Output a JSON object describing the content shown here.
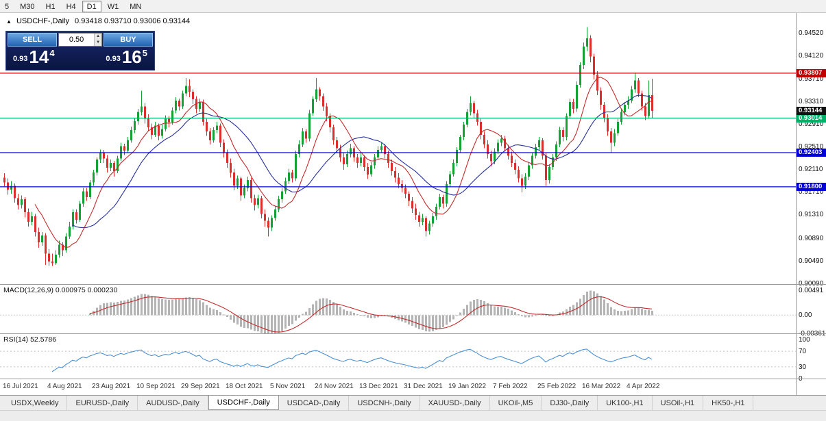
{
  "toolbar": {
    "periods": [
      "5",
      "M30",
      "H1",
      "H4",
      "D1",
      "W1",
      "MN"
    ],
    "active_period": "D1"
  },
  "icons": {
    "one_click_toggle": "▲",
    "spinner_up": "▲",
    "spinner_down": "▼"
  },
  "chart": {
    "symbol_label": "USDCHF-,Daily",
    "ohlc_text": "0.93418 0.93710 0.93006 0.93144"
  },
  "trade_panel": {
    "sell_label": "SELL",
    "buy_label": "BUY",
    "volume": "0.50",
    "sell_price_prefix": "0.93",
    "sell_price_big": "14",
    "sell_price_sup": "4",
    "buy_price_prefix": "0.93",
    "buy_price_big": "16",
    "buy_price_sup": "5"
  },
  "colors": {
    "bull": "#13a233",
    "bear": "#dd2e2e",
    "ma_fast": "#c42b2b",
    "ma_slow": "#27319c",
    "macd_hist": "#b4b4b4",
    "macd_signal": "#c42b2b",
    "rsi_line": "#4a8fd2"
  },
  "tabs": {
    "items": [
      "USDX,Weekly",
      "EURUSD-,Daily",
      "AUDUSD-,Daily",
      "USDCHF-,Daily",
      "USDCAD-,Daily",
      "USDCNH-,Daily",
      "XAUUSD-,Daily",
      "UKOil-,M5",
      "DJ30-,Daily",
      "UK100-,H1",
      "USOil-,H1",
      "HK50-,H1"
    ],
    "active": "USDCHF-,Daily"
  },
  "chart_data": {
    "type": "candlestick",
    "symbol": "USDCHF-",
    "timeframe": "Daily",
    "title": "USDCHF-,Daily",
    "y_axis": {
      "range_top": 0.9487,
      "range_bottom": 0.9007,
      "ticks": [
        "0.94520",
        "0.94120",
        "0.93710",
        "0.93310",
        "0.92910",
        "0.92510",
        "0.92110",
        "0.91710",
        "0.91310",
        "0.90890",
        "0.90490",
        "0.90090"
      ]
    },
    "date_labels": [
      "16 Jul 2021",
      "4 Aug 2021",
      "23 Aug 2021",
      "10 Sep 2021",
      "29 Sep 2021",
      "18 Oct 2021",
      "5 Nov 2021",
      "24 Nov 2021",
      "13 Dec 2021",
      "31 Dec 2021",
      "19 Jan 2022",
      "7 Feb 2022",
      "25 Feb 2022",
      "16 Mar 2022",
      "4 Apr 2022"
    ],
    "date_label_indices": [
      0,
      13,
      26,
      39,
      52,
      65,
      78,
      91,
      104,
      117,
      130,
      143,
      156,
      169,
      182
    ],
    "levels": [
      {
        "value": 0.93807,
        "label": "0.93807",
        "color": "#c00000"
      },
      {
        "value": 0.93014,
        "label": "0.93014",
        "color": "#00b168"
      },
      {
        "value": 0.92403,
        "label": "0.92403",
        "color": "#0000d8"
      },
      {
        "value": 0.918,
        "label": "0.91800",
        "color": "#0000d8"
      }
    ],
    "current_price": {
      "value": 0.93144,
      "label": "0.93144",
      "color": "#111111"
    },
    "last_ohlc": {
      "open": "0.93418",
      "high": "0.93710",
      "low": "0.93006",
      "close": "0.93144"
    },
    "moving_averages": [
      {
        "period": 10,
        "color_key": "ma_fast"
      },
      {
        "period": 21,
        "color_key": "ma_slow"
      }
    ],
    "macd": {
      "label": "MACD(12,26,9) 0.000975 0.000230",
      "fast": 12,
      "slow": 26,
      "signal": 9,
      "ticks": [
        [
          "0.00491",
          0.00491
        ],
        [
          "0.00",
          0
        ],
        [
          "-0.00361",
          -0.00361
        ]
      ],
      "range_top": 0.00599,
      "range_bottom": -0.00375
    },
    "rsi": {
      "label": "RSI(14) 52.5786",
      "period": 14,
      "current": 52.5786,
      "ticks": [
        [
          "100",
          100
        ],
        [
          "70",
          70
        ],
        [
          "30",
          30
        ],
        [
          "0",
          0
        ]
      ],
      "levels": [
        70,
        30
      ]
    },
    "ohlc": [
      [
        0.9196,
        0.9204,
        0.918,
        0.9188
      ],
      [
        0.9188,
        0.9195,
        0.9166,
        0.9175
      ],
      [
        0.9175,
        0.919,
        0.9168,
        0.9182
      ],
      [
        0.9182,
        0.9186,
        0.9152,
        0.916
      ],
      [
        0.916,
        0.9168,
        0.914,
        0.9148
      ],
      [
        0.9148,
        0.9165,
        0.9142,
        0.9158
      ],
      [
        0.9158,
        0.9162,
        0.9126,
        0.9135
      ],
      [
        0.9135,
        0.9142,
        0.911,
        0.9118
      ],
      [
        0.9118,
        0.9136,
        0.9112,
        0.9128
      ],
      [
        0.9128,
        0.9132,
        0.9092,
        0.91
      ],
      [
        0.91,
        0.9108,
        0.9072,
        0.9082
      ],
      [
        0.9082,
        0.91,
        0.9076,
        0.9094
      ],
      [
        0.9094,
        0.9098,
        0.9042,
        0.9062
      ],
      [
        0.9062,
        0.907,
        0.904,
        0.9048
      ],
      [
        0.9048,
        0.9062,
        0.904,
        0.9045
      ],
      [
        0.9045,
        0.9068,
        0.9042,
        0.906
      ],
      [
        0.906,
        0.9085,
        0.9055,
        0.9078
      ],
      [
        0.9078,
        0.9082,
        0.9058,
        0.9068
      ],
      [
        0.9068,
        0.9098,
        0.9064,
        0.9092
      ],
      [
        0.9092,
        0.9118,
        0.9088,
        0.911
      ],
      [
        0.911,
        0.914,
        0.9105,
        0.9135
      ],
      [
        0.9135,
        0.914,
        0.9115,
        0.9122
      ],
      [
        0.9122,
        0.9155,
        0.9118,
        0.915
      ],
      [
        0.915,
        0.9178,
        0.9145,
        0.9172
      ],
      [
        0.9172,
        0.9178,
        0.9155,
        0.9162
      ],
      [
        0.9162,
        0.9192,
        0.9158,
        0.9188
      ],
      [
        0.9188,
        0.921,
        0.9182,
        0.9205
      ],
      [
        0.9205,
        0.9232,
        0.92,
        0.9228
      ],
      [
        0.9228,
        0.9246,
        0.9222,
        0.924
      ],
      [
        0.924,
        0.9245,
        0.9222,
        0.923
      ],
      [
        0.923,
        0.9236,
        0.9205,
        0.9214
      ],
      [
        0.9214,
        0.9228,
        0.9208,
        0.9222
      ],
      [
        0.9222,
        0.9226,
        0.9198,
        0.9208
      ],
      [
        0.9208,
        0.9235,
        0.9204,
        0.923
      ],
      [
        0.923,
        0.9258,
        0.9226,
        0.9252
      ],
      [
        0.9252,
        0.9256,
        0.9236,
        0.9244
      ],
      [
        0.9244,
        0.9268,
        0.924,
        0.9262
      ],
      [
        0.9262,
        0.9286,
        0.9258,
        0.928
      ],
      [
        0.928,
        0.9302,
        0.9275,
        0.9296
      ],
      [
        0.9296,
        0.9318,
        0.929,
        0.9312
      ],
      [
        0.9312,
        0.935,
        0.9306,
        0.9322
      ],
      [
        0.9322,
        0.9328,
        0.9292,
        0.93
      ],
      [
        0.93,
        0.9308,
        0.9278,
        0.9285
      ],
      [
        0.9285,
        0.9292,
        0.9264,
        0.9272
      ],
      [
        0.9272,
        0.9295,
        0.9268,
        0.9288
      ],
      [
        0.9288,
        0.9292,
        0.9262,
        0.927
      ],
      [
        0.927,
        0.929,
        0.9265,
        0.9282
      ],
      [
        0.9282,
        0.9306,
        0.9278,
        0.93
      ],
      [
        0.93,
        0.9305,
        0.9285,
        0.9294
      ],
      [
        0.9294,
        0.932,
        0.929,
        0.9315
      ],
      [
        0.9315,
        0.9338,
        0.931,
        0.9332
      ],
      [
        0.9332,
        0.9336,
        0.9315,
        0.9322
      ],
      [
        0.9322,
        0.935,
        0.9318,
        0.9345
      ],
      [
        0.9345,
        0.9372,
        0.934,
        0.9358
      ],
      [
        0.9358,
        0.937,
        0.9338,
        0.9348
      ],
      [
        0.9348,
        0.9352,
        0.9326,
        0.9335
      ],
      [
        0.9335,
        0.934,
        0.931,
        0.9318
      ],
      [
        0.9318,
        0.9336,
        0.9312,
        0.933
      ],
      [
        0.933,
        0.9334,
        0.9288,
        0.9295
      ],
      [
        0.9295,
        0.93,
        0.927,
        0.9278
      ],
      [
        0.9278,
        0.9284,
        0.9255,
        0.9262
      ],
      [
        0.9262,
        0.9285,
        0.9258,
        0.928
      ],
      [
        0.928,
        0.9295,
        0.9275,
        0.9288
      ],
      [
        0.9288,
        0.9292,
        0.925,
        0.9258
      ],
      [
        0.9258,
        0.9264,
        0.9232,
        0.924
      ],
      [
        0.924,
        0.9246,
        0.9214,
        0.9222
      ],
      [
        0.9222,
        0.923,
        0.9196,
        0.9205
      ],
      [
        0.9205,
        0.9212,
        0.9174,
        0.9182
      ],
      [
        0.9182,
        0.92,
        0.9176,
        0.9195
      ],
      [
        0.9195,
        0.9198,
        0.9156,
        0.9165
      ],
      [
        0.9165,
        0.9184,
        0.916,
        0.9178
      ],
      [
        0.9178,
        0.9198,
        0.9172,
        0.9192
      ],
      [
        0.9192,
        0.9196,
        0.9152,
        0.916
      ],
      [
        0.916,
        0.9166,
        0.9138,
        0.9148
      ],
      [
        0.9148,
        0.9166,
        0.9142,
        0.916
      ],
      [
        0.916,
        0.9164,
        0.9124,
        0.9132
      ],
      [
        0.9132,
        0.914,
        0.911,
        0.912
      ],
      [
        0.912,
        0.9126,
        0.9092,
        0.9108
      ],
      [
        0.9108,
        0.913,
        0.9102,
        0.9125
      ],
      [
        0.9125,
        0.9146,
        0.912,
        0.914
      ],
      [
        0.914,
        0.9164,
        0.9135,
        0.9158
      ],
      [
        0.9158,
        0.9178,
        0.9152,
        0.9172
      ],
      [
        0.9172,
        0.9196,
        0.9168,
        0.919
      ],
      [
        0.919,
        0.9212,
        0.9185,
        0.9205
      ],
      [
        0.9205,
        0.921,
        0.9188,
        0.9195
      ],
      [
        0.9195,
        0.9244,
        0.919,
        0.9238
      ],
      [
        0.9238,
        0.9262,
        0.9232,
        0.9255
      ],
      [
        0.9255,
        0.9284,
        0.925,
        0.9278
      ],
      [
        0.9278,
        0.9282,
        0.9258,
        0.9265
      ],
      [
        0.9265,
        0.9316,
        0.926,
        0.931
      ],
      [
        0.931,
        0.934,
        0.9305,
        0.9335
      ],
      [
        0.9335,
        0.9372,
        0.933,
        0.9352
      ],
      [
        0.9352,
        0.9356,
        0.9332,
        0.934
      ],
      [
        0.934,
        0.9345,
        0.9314,
        0.9322
      ],
      [
        0.9322,
        0.9328,
        0.9296,
        0.9305
      ],
      [
        0.9305,
        0.931,
        0.9276,
        0.9285
      ],
      [
        0.9285,
        0.929,
        0.9254,
        0.9262
      ],
      [
        0.9262,
        0.9268,
        0.924,
        0.9248
      ],
      [
        0.9248,
        0.9254,
        0.9224,
        0.9232
      ],
      [
        0.9232,
        0.924,
        0.921,
        0.922
      ],
      [
        0.922,
        0.9244,
        0.9215,
        0.9238
      ],
      [
        0.9238,
        0.9256,
        0.9232,
        0.9248
      ],
      [
        0.9248,
        0.9252,
        0.9224,
        0.9232
      ],
      [
        0.9232,
        0.9238,
        0.9214,
        0.9222
      ],
      [
        0.9222,
        0.924,
        0.9216,
        0.9232
      ],
      [
        0.9232,
        0.9236,
        0.9208,
        0.9215
      ],
      [
        0.9215,
        0.9222,
        0.9194,
        0.9202
      ],
      [
        0.9202,
        0.9224,
        0.9198,
        0.9218
      ],
      [
        0.9218,
        0.9238,
        0.9212,
        0.9232
      ],
      [
        0.9232,
        0.9252,
        0.9228,
        0.9245
      ],
      [
        0.9245,
        0.9258,
        0.924,
        0.9252
      ],
      [
        0.9252,
        0.9256,
        0.923,
        0.9238
      ],
      [
        0.9238,
        0.9244,
        0.9214,
        0.9222
      ],
      [
        0.9222,
        0.9228,
        0.92,
        0.9208
      ],
      [
        0.9208,
        0.9215,
        0.9188,
        0.9196
      ],
      [
        0.9196,
        0.9204,
        0.9178,
        0.9185
      ],
      [
        0.9185,
        0.9192,
        0.917,
        0.9178
      ],
      [
        0.9178,
        0.9184,
        0.916,
        0.9168
      ],
      [
        0.9168,
        0.9172,
        0.9146,
        0.9155
      ],
      [
        0.9155,
        0.9162,
        0.9134,
        0.9142
      ],
      [
        0.9142,
        0.915,
        0.9122,
        0.913
      ],
      [
        0.913,
        0.9136,
        0.911,
        0.9118
      ],
      [
        0.9118,
        0.9132,
        0.9112,
        0.9125
      ],
      [
        0.9125,
        0.9128,
        0.9092,
        0.9102
      ],
      [
        0.9102,
        0.912,
        0.9096,
        0.9115
      ],
      [
        0.9115,
        0.9134,
        0.911,
        0.9128
      ],
      [
        0.9128,
        0.915,
        0.9122,
        0.9145
      ],
      [
        0.9145,
        0.9168,
        0.914,
        0.9162
      ],
      [
        0.9162,
        0.9166,
        0.9142,
        0.915
      ],
      [
        0.915,
        0.919,
        0.9145,
        0.9185
      ],
      [
        0.9185,
        0.9208,
        0.918,
        0.9202
      ],
      [
        0.9202,
        0.9228,
        0.9198,
        0.9222
      ],
      [
        0.9222,
        0.925,
        0.9216,
        0.9245
      ],
      [
        0.9245,
        0.9272,
        0.924,
        0.9268
      ],
      [
        0.9268,
        0.9295,
        0.9262,
        0.929
      ],
      [
        0.929,
        0.9318,
        0.9285,
        0.9312
      ],
      [
        0.9312,
        0.934,
        0.9306,
        0.9328
      ],
      [
        0.9328,
        0.9332,
        0.9302,
        0.931
      ],
      [
        0.931,
        0.9316,
        0.9288,
        0.9295
      ],
      [
        0.9295,
        0.93,
        0.9264,
        0.9272
      ],
      [
        0.9272,
        0.9278,
        0.9248,
        0.9255
      ],
      [
        0.9255,
        0.9262,
        0.923,
        0.9238
      ],
      [
        0.9238,
        0.9244,
        0.9216,
        0.9225
      ],
      [
        0.9225,
        0.9248,
        0.922,
        0.9242
      ],
      [
        0.9242,
        0.9264,
        0.9238,
        0.9258
      ],
      [
        0.9258,
        0.9272,
        0.9252,
        0.9265
      ],
      [
        0.9265,
        0.927,
        0.9242,
        0.9248
      ],
      [
        0.9248,
        0.9254,
        0.9228,
        0.9235
      ],
      [
        0.9235,
        0.9242,
        0.9215,
        0.9222
      ],
      [
        0.9222,
        0.9228,
        0.9202,
        0.921
      ],
      [
        0.921,
        0.9216,
        0.9188,
        0.9195
      ],
      [
        0.9195,
        0.9202,
        0.917,
        0.9182
      ],
      [
        0.9182,
        0.9204,
        0.9176,
        0.9198
      ],
      [
        0.9198,
        0.9224,
        0.9192,
        0.9218
      ],
      [
        0.9218,
        0.924,
        0.9212,
        0.9235
      ],
      [
        0.9235,
        0.9256,
        0.923,
        0.925
      ],
      [
        0.925,
        0.9268,
        0.9245,
        0.9262
      ],
      [
        0.9262,
        0.9266,
        0.9228,
        0.9235
      ],
      [
        0.9235,
        0.924,
        0.9182,
        0.9192
      ],
      [
        0.9192,
        0.922,
        0.9186,
        0.9215
      ],
      [
        0.9215,
        0.9238,
        0.921,
        0.9232
      ],
      [
        0.9232,
        0.926,
        0.9226,
        0.9255
      ],
      [
        0.9255,
        0.9286,
        0.925,
        0.928
      ],
      [
        0.928,
        0.9285,
        0.926,
        0.9268
      ],
      [
        0.9268,
        0.931,
        0.9262,
        0.9305
      ],
      [
        0.9305,
        0.9336,
        0.93,
        0.933
      ],
      [
        0.933,
        0.9335,
        0.931,
        0.9318
      ],
      [
        0.9318,
        0.9366,
        0.9312,
        0.936
      ],
      [
        0.936,
        0.94,
        0.9355,
        0.9395
      ],
      [
        0.9395,
        0.9435,
        0.9388,
        0.9428
      ],
      [
        0.9428,
        0.9462,
        0.942,
        0.9442
      ],
      [
        0.9442,
        0.9448,
        0.94,
        0.941
      ],
      [
        0.941,
        0.9415,
        0.937,
        0.9378
      ],
      [
        0.9378,
        0.9384,
        0.9342,
        0.935
      ],
      [
        0.935,
        0.9356,
        0.9316,
        0.9325
      ],
      [
        0.9325,
        0.933,
        0.9294,
        0.9302
      ],
      [
        0.9302,
        0.9308,
        0.927,
        0.9278
      ],
      [
        0.9278,
        0.9284,
        0.924,
        0.9258
      ],
      [
        0.9258,
        0.9282,
        0.9252,
        0.9275
      ],
      [
        0.9275,
        0.93,
        0.927,
        0.9295
      ],
      [
        0.9295,
        0.9318,
        0.929,
        0.9312
      ],
      [
        0.9312,
        0.933,
        0.9306,
        0.9325
      ],
      [
        0.9325,
        0.934,
        0.9318,
        0.9332
      ],
      [
        0.9332,
        0.9358,
        0.9328,
        0.9352
      ],
      [
        0.9352,
        0.9382,
        0.9346,
        0.9368
      ],
      [
        0.9368,
        0.9372,
        0.9338,
        0.9345
      ],
      [
        0.9345,
        0.935,
        0.9315,
        0.9322
      ],
      [
        0.9322,
        0.9328,
        0.9298,
        0.9305
      ],
      [
        0.9305,
        0.9368,
        0.93,
        0.9342
      ],
      [
        0.93418,
        0.9371,
        0.93006,
        0.93144
      ]
    ]
  }
}
